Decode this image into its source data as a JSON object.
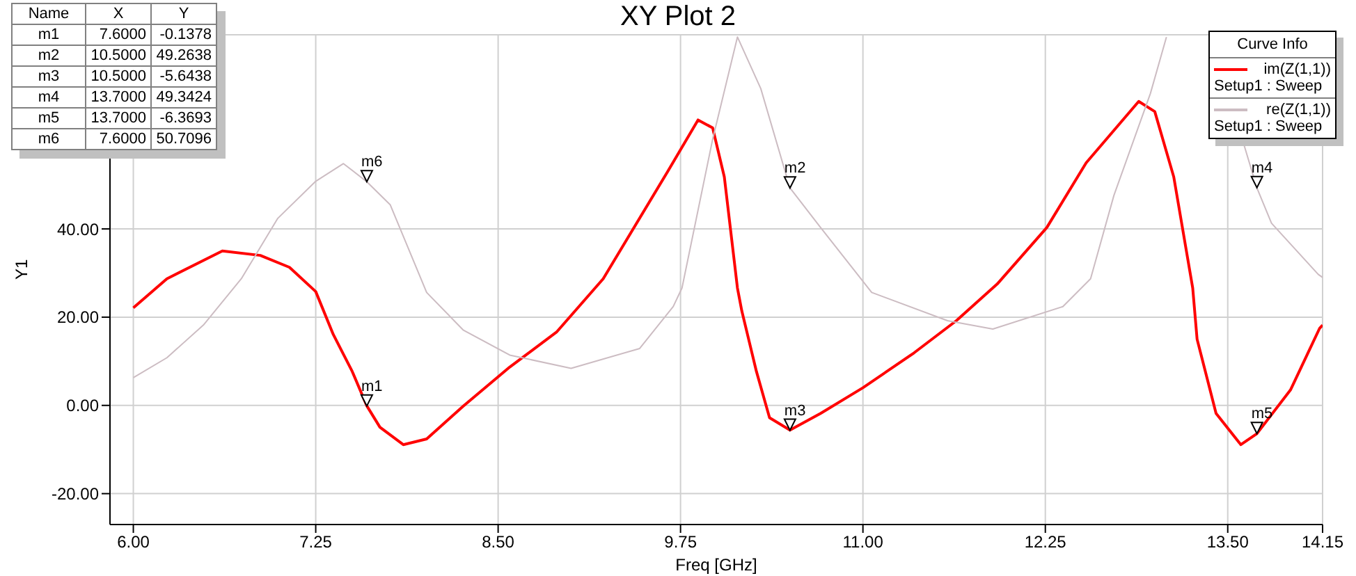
{
  "chart_data": {
    "type": "line",
    "title": "XY Plot 2",
    "xlabel": "Freq [GHz]",
    "ylabel": "Y1",
    "legend_title": "Curve Info",
    "legend": "top right",
    "grid": true,
    "marker": "none",
    "line_style": "solid",
    "xlim": [
      5.84,
      14.15
    ],
    "ylim": [
      -27,
      84
    ],
    "xticks": [
      {
        "value": 6,
        "label": "6.00"
      },
      {
        "value": 7.25,
        "label": "7.25"
      },
      {
        "value": 8.5,
        "label": "8.50"
      },
      {
        "value": 9.75,
        "label": "9.75"
      },
      {
        "value": 11,
        "label": "11.00"
      },
      {
        "value": 12.25,
        "label": "12.25"
      },
      {
        "value": 13.5,
        "label": "13.50"
      },
      {
        "value": 14.15,
        "label": "14.15"
      }
    ],
    "yticks": [
      {
        "value": -20,
        "label": "-20.00"
      },
      {
        "value": 0,
        "label": "0.00"
      },
      {
        "value": 20,
        "label": "20.00"
      },
      {
        "value": 40,
        "label": "40.00"
      }
    ],
    "series": [
      {
        "name": "im(Z(1,1))\nSetup1 : Sweep",
        "color": "#ff0000",
        "x": [
          6.0,
          6.23,
          6.61,
          6.87,
          7.07,
          7.25,
          7.37,
          7.5,
          7.6,
          7.69,
          7.85,
          8.01,
          8.26,
          8.58,
          8.9,
          9.22,
          9.66,
          9.87,
          9.97,
          10.05,
          10.14,
          10.17,
          10.27,
          10.36,
          10.5,
          10.71,
          11.0,
          11.35,
          11.64,
          11.92,
          12.26,
          12.53,
          12.89,
          13.0,
          13.13,
          13.26,
          13.29,
          13.42,
          13.59,
          13.7,
          13.93,
          14.13,
          14.15
        ],
        "values": [
          22.1,
          28.7,
          35.0,
          34.0,
          31.3,
          25.8,
          16.1,
          7.7,
          -0.1,
          -4.95,
          -8.9,
          -7.6,
          -0.2,
          8.7,
          16.6,
          28.7,
          52.9,
          64.7,
          62.9,
          51.8,
          26.6,
          21.4,
          7.7,
          -2.8,
          -5.6,
          -1.8,
          4.0,
          11.9,
          19.2,
          27.5,
          40.3,
          55.0,
          68.9,
          66.6,
          51.8,
          26.6,
          15.0,
          -1.8,
          -8.9,
          -6.4,
          3.5,
          17.5,
          18.2
        ]
      },
      {
        "name": "re(Z(1,1))\nSetup1 : Sweep",
        "color": "#ccbcc2",
        "x": [
          6.0,
          6.23,
          6.48,
          6.74,
          6.99,
          7.25,
          7.44,
          7.6,
          7.76,
          8.01,
          8.26,
          8.58,
          9.0,
          9.47,
          9.7,
          9.76,
          9.97,
          10.14,
          10.3,
          10.5,
          10.71,
          11.06,
          11.58,
          11.89,
          12.37,
          12.56,
          12.72,
          12.97,
          13.08,
          13.3,
          13.61,
          13.7,
          13.8,
          14.12,
          14.15
        ],
        "values": [
          6.3,
          10.8,
          18.2,
          28.7,
          42.4,
          50.8,
          54.8,
          50.7,
          45.5,
          25.6,
          17.1,
          11.4,
          8.4,
          12.9,
          22.4,
          26.6,
          60.3,
          83.5,
          71.8,
          49.3,
          40.3,
          25.6,
          19.2,
          17.3,
          22.4,
          28.7,
          47.6,
          70.7,
          83.5,
          null,
          59.2,
          49.3,
          41.3,
          29.7,
          29.0
        ]
      }
    ],
    "annotations": [
      "Name",
      "X",
      "Y",
      "m1",
      "7.6000",
      "-0.1378",
      "m2",
      "10.5000",
      "49.2638",
      "m3",
      "10.5000",
      "-5.6438",
      "m4",
      "13.7000",
      "49.3424",
      "m5",
      "13.7000",
      "-6.3693",
      "m6",
      "7.6000",
      "50.7096",
      {
        "text": "m1",
        "x": 7.6,
        "y": -0.1378
      },
      {
        "text": "m2",
        "x": 10.5,
        "y": 49.2638
      },
      {
        "text": "m3",
        "x": 10.5,
        "y": -5.6438
      },
      {
        "text": "m4",
        "x": 13.7,
        "y": 49.3424
      },
      {
        "text": "m5",
        "x": 13.7,
        "y": -6.3693
      },
      {
        "text": "m6",
        "x": 7.6,
        "y": 50.7096
      }
    ]
  }
}
